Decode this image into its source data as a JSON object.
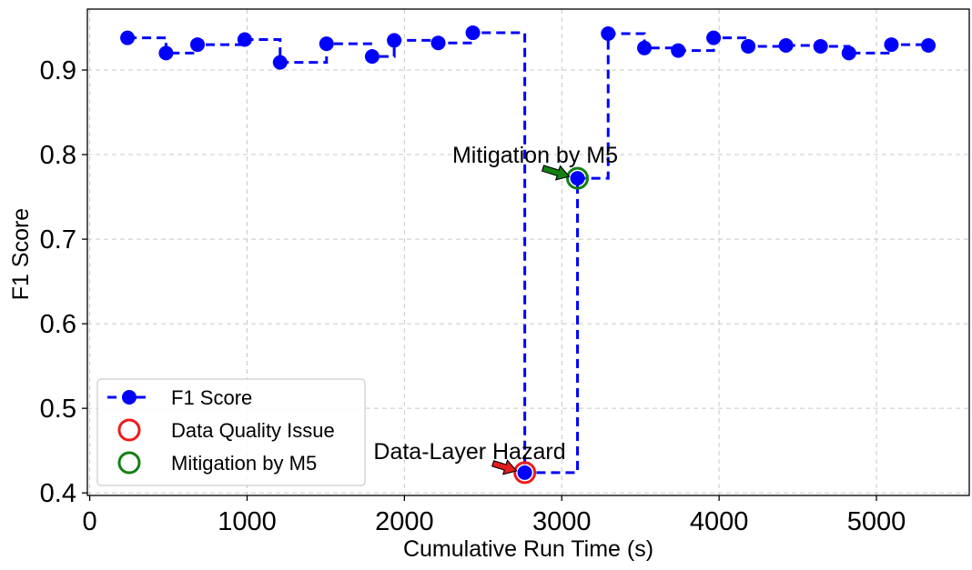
{
  "chart_data": {
    "type": "line",
    "xlabel": "Cumulative Run Time (s)",
    "ylabel": "F1 Score",
    "xlim": [
      -15,
      5590
    ],
    "ylim": [
      0.397,
      0.972
    ],
    "xticks": [
      0,
      1000,
      2000,
      3000,
      4000,
      5000
    ],
    "yticks": [
      0.4,
      0.5,
      0.6,
      0.7,
      0.8,
      0.9
    ],
    "xtick_labels": [
      "0",
      "1000",
      "2000",
      "3000",
      "4000",
      "5000"
    ],
    "ytick_labels": [
      "0.4",
      "0.5",
      "0.6",
      "0.7",
      "0.8",
      "0.9"
    ],
    "grid": true,
    "step": "post",
    "legend_position": "lower-left",
    "series": [
      {
        "name": "F1 Score",
        "color": "#0000ff",
        "line_style": "dashed",
        "marker": "circle",
        "x": [
          240,
          485,
          685,
          985,
          1210,
          1505,
          1795,
          1935,
          2215,
          2435,
          2765,
          3100,
          3295,
          3525,
          3740,
          3965,
          4185,
          4425,
          4645,
          4825,
          5095,
          5330
        ],
        "y": [
          0.938,
          0.92,
          0.93,
          0.936,
          0.909,
          0.931,
          0.916,
          0.935,
          0.932,
          0.944,
          0.424,
          0.772,
          0.943,
          0.926,
          0.923,
          0.938,
          0.928,
          0.929,
          0.928,
          0.92,
          0.93,
          0.929
        ]
      }
    ],
    "highlights": [
      {
        "name": "Data Quality Issue",
        "color": "#ee1c1c",
        "x": 2765,
        "y": 0.424
      },
      {
        "name": "Mitigation by M5",
        "color": "#128012",
        "x": 3100,
        "y": 0.772
      }
    ],
    "annotations": [
      {
        "text": "Data-Layer Hazard",
        "x": 2765,
        "y": 0.424,
        "arrow_color": "#e51c1c"
      },
      {
        "text": "Mitigation by M5",
        "x": 3100,
        "y": 0.772,
        "arrow_color": "#128012"
      }
    ]
  }
}
